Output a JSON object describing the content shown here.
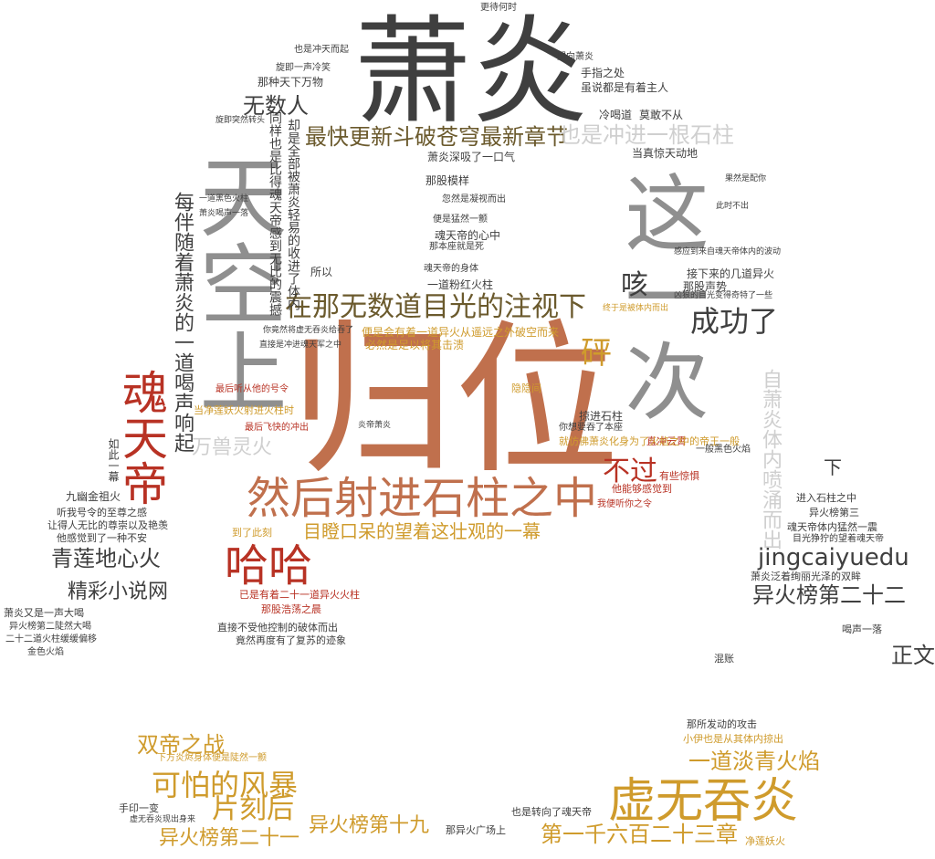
{
  "palette": {
    "dark": "#3f3f3f",
    "grey": "#8f8f8f",
    "light": "#cfcfcf",
    "red": "#b83224",
    "orange": "#c0704d",
    "gold": "#cf9b2c",
    "olive": "#6b5a2d"
  },
  "words": [
    {
      "text": "萧炎",
      "color": "dark"
    },
    {
      "text": "归位",
      "color": "orange"
    },
    {
      "text": "天空上",
      "color": "grey"
    },
    {
      "text": "这一次",
      "color": "grey"
    },
    {
      "text": "然后射进石柱之中",
      "color": "orange"
    },
    {
      "text": "魂天帝",
      "color": "red"
    },
    {
      "text": "哈哈",
      "color": "red"
    },
    {
      "text": "虚无吞炎",
      "color": "gold"
    },
    {
      "text": "在那无数道目光的注视下",
      "color": "olive"
    },
    {
      "text": "最快更新斗破苍穹最新章节",
      "color": "olive"
    },
    {
      "text": "也是冲进一根石柱",
      "color": "light"
    },
    {
      "text": "无数人",
      "color": "dark"
    },
    {
      "text": "成功了",
      "color": "dark"
    },
    {
      "text": "砰",
      "color": "gold"
    },
    {
      "text": "咳",
      "color": "dark"
    },
    {
      "text": "可怕的风暴",
      "color": "gold"
    },
    {
      "text": "片刻后",
      "color": "gold"
    },
    {
      "text": "双帝之战",
      "color": "gold"
    },
    {
      "text": "异火榜第二十一",
      "color": "gold"
    },
    {
      "text": "异火榜第十九",
      "color": "gold"
    },
    {
      "text": "第一千六百二十三章",
      "color": "gold"
    },
    {
      "text": "一道淡青火焰",
      "color": "gold"
    },
    {
      "text": "jingcaiyuedu",
      "color": "dark"
    },
    {
      "text": "异火榜第二十二",
      "color": "dark"
    },
    {
      "text": "正文",
      "color": "dark"
    },
    {
      "text": "青莲地心火",
      "color": "dark"
    },
    {
      "text": "精彩小说网",
      "color": "dark"
    },
    {
      "text": "万兽灵火",
      "color": "light"
    },
    {
      "text": "目瞪口呆的望着这壮观的一幕",
      "color": "gold"
    },
    {
      "text": "不过",
      "color": "red"
    },
    {
      "text": "下",
      "color": "dark"
    },
    {
      "text": "每伴随着萧炎的一道喝声响起",
      "color": "dark"
    },
    {
      "text": "自萧炎体内喷涌而出",
      "color": "light"
    },
    {
      "text": "同样也是比得魂天帝感到无比的震撼",
      "color": "dark"
    },
    {
      "text": "却是全部被萧炎轻易的收进了体内",
      "color": "dark"
    },
    {
      "text": "萧炎深吸了一口气",
      "color": "dark"
    },
    {
      "text": "一道粉红火柱",
      "color": "dark"
    },
    {
      "text": "冷喝道",
      "color": "dark"
    },
    {
      "text": "莫敢不从",
      "color": "dark"
    },
    {
      "text": "当真惊天动地",
      "color": "dark"
    },
    {
      "text": "手指之处",
      "color": "dark"
    },
    {
      "text": "虽说都是有着主人",
      "color": "dark"
    },
    {
      "text": "望向萧炎",
      "color": "dark"
    },
    {
      "text": "那种天下万物",
      "color": "dark"
    },
    {
      "text": "也是冲天而起",
      "color": "dark"
    },
    {
      "text": "旋即一声冷笑",
      "color": "dark"
    },
    {
      "text": "更待何时",
      "color": "dark"
    },
    {
      "text": "那股模样",
      "color": "dark"
    },
    {
      "text": "忽然是凝视而出",
      "color": "dark"
    },
    {
      "text": "便是猛然一颤",
      "color": "dark"
    },
    {
      "text": "魂天帝的心中",
      "color": "dark"
    },
    {
      "text": "那本座就是死",
      "color": "dark"
    },
    {
      "text": "魂天帝的身体",
      "color": "dark"
    },
    {
      "text": "所以",
      "color": "dark"
    },
    {
      "text": "接下来的几道异火",
      "color": "dark"
    },
    {
      "text": "那股声势",
      "color": "dark"
    },
    {
      "text": "便是会有着一道异火从遥远之外破空而来",
      "color": "gold"
    },
    {
      "text": "必然是足以将其击溃",
      "color": "gold"
    },
    {
      "text": "最后听从他的号令",
      "color": "red"
    },
    {
      "text": "当净莲妖火射进火柱时",
      "color": "gold"
    },
    {
      "text": "最后飞快的冲出",
      "color": "red"
    },
    {
      "text": "隐隐间",
      "color": "gold"
    },
    {
      "text": "掠进石柱",
      "color": "dark"
    },
    {
      "text": "直冲云霄",
      "color": "red"
    },
    {
      "text": "有些惊惧",
      "color": "red"
    },
    {
      "text": "就仿佛萧炎化身为了火焰之中的帝王一般",
      "color": "gold"
    },
    {
      "text": "一般黑色火焰",
      "color": "dark"
    },
    {
      "text": "他能够感觉到",
      "color": "red"
    },
    {
      "text": "进入石柱之中",
      "color": "dark"
    },
    {
      "text": "异火榜第三",
      "color": "dark"
    },
    {
      "text": "魂天帝体内猛然一震",
      "color": "dark"
    },
    {
      "text": "目光狰狞的望着魂天帝",
      "color": "dark"
    },
    {
      "text": "萧炎泛着绚丽光泽的双眸",
      "color": "dark"
    },
    {
      "text": "九幽金祖火",
      "color": "dark"
    },
    {
      "text": "听我号令的至尊之感",
      "color": "dark"
    },
    {
      "text": "让得人无比的尊崇以及艳羡",
      "color": "dark"
    },
    {
      "text": "他感觉到了一种不安",
      "color": "dark"
    },
    {
      "text": "到了此刻",
      "color": "gold"
    },
    {
      "text": "已是有着二十一道异火火柱",
      "color": "red"
    },
    {
      "text": "那股浩荡之晨",
      "color": "red"
    },
    {
      "text": "直接不受他控制的破体而出",
      "color": "dark"
    },
    {
      "text": "竟然再度有了复苏的迹象",
      "color": "dark"
    },
    {
      "text": "萧炎又是一声大喝",
      "color": "dark"
    },
    {
      "text": "异火榜第二陡然大喝",
      "color": "dark"
    },
    {
      "text": "二十二道火柱缓缓偏移",
      "color": "dark"
    },
    {
      "text": "金色火焰",
      "color": "dark"
    },
    {
      "text": "下方炎烬身体便是陡然一颤",
      "color": "gold"
    },
    {
      "text": "手印一变",
      "color": "dark"
    },
    {
      "text": "虚无吞炎现出身来",
      "color": "dark"
    },
    {
      "text": "那所发动的攻击",
      "color": "dark"
    },
    {
      "text": "小伊也是从其体内掠出",
      "color": "gold"
    },
    {
      "text": "也是转向了魂天帝",
      "color": "dark"
    },
    {
      "text": "那异火广场上",
      "color": "dark"
    },
    {
      "text": "净莲妖火",
      "color": "gold"
    },
    {
      "text": "喝声一落",
      "color": "dark"
    },
    {
      "text": "混账",
      "color": "dark"
    },
    {
      "text": "你竟然将虚无吞炎给吞了",
      "color": "dark"
    },
    {
      "text": "直接是冲进魂天军之中",
      "color": "dark"
    },
    {
      "text": "一道黑色火柱",
      "color": "dark"
    },
    {
      "text": "萧炎喝声一落",
      "color": "dark"
    },
    {
      "text": "凶狠的目光变得奇特了一些",
      "color": "dark"
    },
    {
      "text": "感应到来自魂天帝体内的波动",
      "color": "dark"
    },
    {
      "text": "终于是被体内而出",
      "color": "gold"
    },
    {
      "text": "如此一幕",
      "color": "dark"
    },
    {
      "text": "我便听你之令",
      "color": "red"
    },
    {
      "text": "你想要吞了本座",
      "color": "dark"
    },
    {
      "text": "炎帝萧炎",
      "color": "dark"
    },
    {
      "text": "旋即突然转头",
      "color": "dark"
    },
    {
      "text": "此时不出",
      "color": "dark"
    },
    {
      "text": "果然是配你",
      "color": "dark"
    }
  ]
}
